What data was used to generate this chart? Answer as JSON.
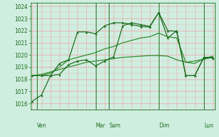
{
  "bg_color": "#c8e8d8",
  "plot_bg": "#d0eee0",
  "grid_color_h": "#e8b0b0",
  "grid_color_v": "#e8b0b0",
  "line_color_dark": "#1a6b1a",
  "line_color_mid": "#2d8b2d",
  "ylim_lo": 1015.5,
  "ylim_hi": 1024.3,
  "yticks": [
    1016,
    1017,
    1018,
    1019,
    1020,
    1021,
    1022,
    1023,
    1024
  ],
  "day_labels": [
    "Ven",
    "Mar",
    "Sam",
    "Dim",
    "Lun"
  ],
  "day_x": [
    0.5,
    7.0,
    8.5,
    14.0,
    19.0
  ],
  "vline_x": [
    0.5,
    7.0,
    8.5,
    14.0,
    19.0
  ],
  "n_xgrid": 20,
  "s1": [
    1016.2,
    1016.7,
    1018.3,
    1018.4,
    1019.2,
    1019.5,
    1019.6,
    1019.1,
    1019.5,
    1019.85,
    1022.4,
    1022.65,
    1022.5,
    1022.35,
    1023.5,
    1021.4,
    1022.0,
    1018.3,
    1018.3,
    1019.8,
    1019.8
  ],
  "s2": [
    1018.3,
    1018.3,
    1018.3,
    1019.3,
    1019.6,
    1021.9,
    1021.9,
    1021.75,
    1022.4,
    1022.65,
    1022.65,
    1022.5,
    1022.35,
    1022.3,
    1023.5,
    1022.0,
    1021.95,
    1018.3,
    1018.3,
    1019.8,
    1019.75
  ],
  "s3": [
    1018.3,
    1018.3,
    1018.5,
    1019.0,
    1019.6,
    1019.8,
    1020.0,
    1020.2,
    1020.5,
    1020.7,
    1021.0,
    1021.2,
    1021.4,
    1021.5,
    1021.8,
    1021.5,
    1021.4,
    1019.4,
    1019.3,
    1019.7,
    1019.9
  ],
  "s4": [
    1018.3,
    1018.4,
    1018.6,
    1018.8,
    1019.0,
    1019.2,
    1019.4,
    1019.5,
    1019.6,
    1019.7,
    1019.8,
    1019.85,
    1019.9,
    1019.95,
    1019.95,
    1019.9,
    1019.6,
    1019.4,
    1019.5,
    1019.65,
    1019.8
  ]
}
